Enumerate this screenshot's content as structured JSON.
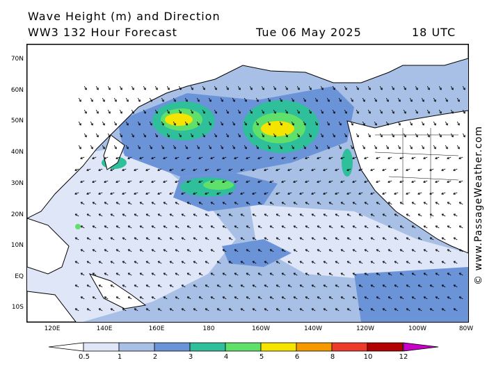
{
  "header": {
    "title": "Wave Height (m) and Direction",
    "model": "WW3 132 Hour Forecast",
    "date": "Tue 06 May 2025",
    "time": "18 UTC"
  },
  "axes": {
    "lat_labels": [
      "70N",
      "60N",
      "50N",
      "40N",
      "30N",
      "20N",
      "10N",
      "EQ",
      "10S"
    ],
    "lon_labels": [
      "120E",
      "140E",
      "160E",
      "180",
      "160W",
      "140W",
      "120W",
      "100W",
      "80W"
    ]
  },
  "credit": "© www.PassageWeather.com",
  "legend": {
    "labels": [
      "0.5",
      "1",
      "2",
      "3",
      "4",
      "5",
      "6",
      "8",
      "10",
      "12"
    ],
    "colors": [
      "#dfe6f7",
      "#a8bfe6",
      "#6a93d8",
      "#2fbf9a",
      "#5ee06a",
      "#f5e400",
      "#f49a00",
      "#ee3a2a",
      "#b30000",
      "#c800c8"
    ]
  },
  "map_colors": {
    "land": "#ffffff",
    "calm_sea": "#dfe6f7",
    "arrow": "#000000"
  }
}
